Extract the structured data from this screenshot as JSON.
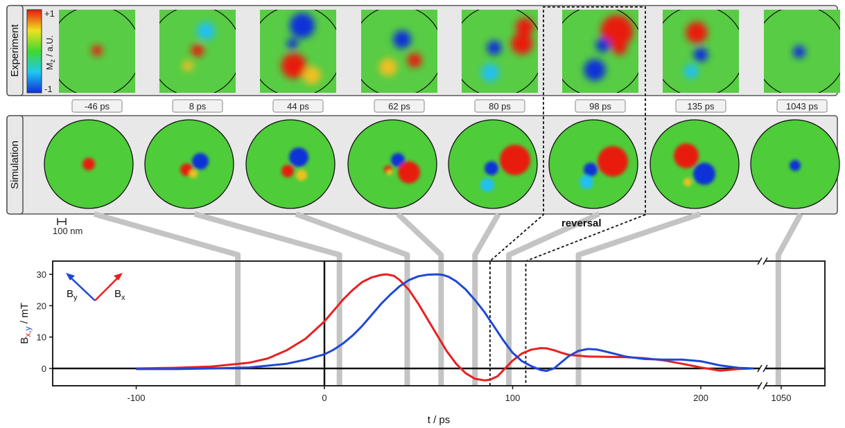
{
  "row_labels": {
    "experiment": "Experiment",
    "simulation": "Simulation"
  },
  "colorbar": {
    "max_label": "+1",
    "min_label": "-1",
    "title_main": "M",
    "title_sub": "z",
    "title_rest": " / a.U."
  },
  "frames": [
    {
      "time": -46,
      "label": "-46 ps"
    },
    {
      "time": 8,
      "label": "8 ps"
    },
    {
      "time": 44,
      "label": "44 ps"
    },
    {
      "time": 62,
      "label": "62 ps"
    },
    {
      "time": 80,
      "label": "80 ps"
    },
    {
      "time": 98,
      "label": "98 ps"
    },
    {
      "time": 135,
      "label": "135 ps"
    },
    {
      "time": 1043,
      "label": "1043 ps"
    }
  ],
  "scale_bar_label": "100 nm",
  "reversal_label": "reversal",
  "legend": {
    "by_main": "B",
    "by_sub": "y",
    "bx_main": "B",
    "bx_sub": "x"
  },
  "colors": {
    "bx": "#e82020",
    "by": "#1f47d6"
  },
  "chart_data": {
    "type": "line",
    "xlabel": "t / ps",
    "ylabel_main": "B",
    "ylabel_sub_x": "x",
    "ylabel_sub_comma": ",",
    "ylabel_sub_y": "y",
    "ylabel_rest": " / mT",
    "xlim": [
      -145,
      230
    ],
    "ylim": [
      -5,
      35
    ],
    "x_ticks": [
      -100,
      0,
      100,
      200
    ],
    "x_tick_labels": [
      "-100",
      "0",
      "100",
      "200"
    ],
    "x_break_tick": 1050,
    "x_break_tick_label": "1050",
    "y_ticks": [
      0,
      10,
      20,
      30
    ],
    "y_tick_labels": [
      "0",
      "10",
      "20",
      "30"
    ],
    "reversal_window": [
      88,
      107
    ],
    "series": [
      {
        "name": "Bx",
        "color": "#e82020",
        "x": [
          -100,
          -80,
          -60,
          -40,
          -30,
          -20,
          -10,
          0,
          5,
          10,
          15,
          20,
          25,
          30,
          33,
          37,
          40,
          45,
          50,
          55,
          60,
          65,
          70,
          75,
          80,
          85,
          88,
          92,
          96,
          100,
          105,
          110,
          115,
          118,
          122,
          126,
          130,
          140,
          150,
          160,
          170,
          180,
          190,
          200,
          210,
          220,
          228
        ],
        "y": [
          0,
          0.2,
          0.6,
          1.8,
          3.2,
          5.8,
          9.5,
          15,
          18.5,
          22,
          25,
          27.5,
          29,
          29.8,
          30,
          29.5,
          28.2,
          25,
          20.5,
          15.5,
          10.5,
          5.5,
          1.5,
          -1.5,
          -3.3,
          -3.8,
          -3.6,
          -2.5,
          0,
          2.5,
          4.8,
          6,
          6.5,
          6.4,
          5.8,
          5,
          4.3,
          3.8,
          3.7,
          3.6,
          3.3,
          2.6,
          1.5,
          0.3,
          -0.7,
          -0.2,
          0
        ]
      },
      {
        "name": "By",
        "color": "#1f47d6",
        "x": [
          -100,
          -80,
          -60,
          -40,
          -20,
          -10,
          0,
          5,
          10,
          15,
          20,
          25,
          30,
          35,
          40,
          45,
          50,
          55,
          60,
          63,
          66,
          70,
          75,
          80,
          85,
          90,
          95,
          100,
          105,
          110,
          115,
          118,
          122,
          126,
          130,
          135,
          140,
          145,
          150,
          160,
          170,
          180,
          190,
          200,
          210,
          220,
          228
        ],
        "y": [
          -0.2,
          -0.2,
          0,
          0.3,
          1.5,
          2.8,
          4.5,
          6,
          8,
          10.5,
          13.5,
          17,
          20.5,
          23.5,
          26.2,
          28.2,
          29.4,
          29.9,
          30,
          29.8,
          29.2,
          27.8,
          25.2,
          21.8,
          18,
          13.5,
          9,
          5,
          2.3,
          0.7,
          -0.5,
          -0.8,
          0,
          2,
          4,
          5.6,
          6.2,
          6,
          5.3,
          3.8,
          3,
          2.8,
          2.8,
          2.3,
          1,
          0.2,
          0
        ]
      }
    ]
  }
}
